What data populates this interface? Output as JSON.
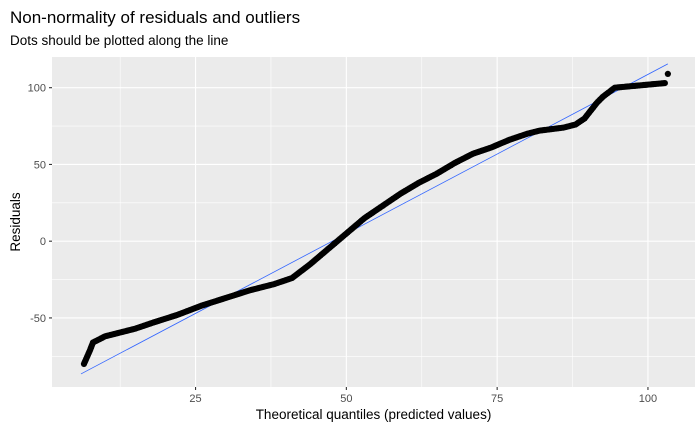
{
  "chart_data": {
    "type": "scatter",
    "title": "Non-normality of residuals and outliers",
    "subtitle": "Dots should be plotted along the line",
    "xlabel": "Theoretical quantiles (predicted values)",
    "ylabel": "Residuals",
    "xlim": [
      1.2,
      107.8
    ],
    "ylim": [
      -95,
      120
    ],
    "x_ticks": [
      25,
      50,
      75,
      100
    ],
    "x_tick_labels": [
      "25",
      "50",
      "75",
      "100"
    ],
    "y_ticks": [
      -50,
      0,
      50,
      100
    ],
    "y_tick_labels": [
      "-50",
      "0",
      "50",
      "100"
    ],
    "grid": true,
    "panel_background": "#ebebeb",
    "grid_color": "#ffffff",
    "point_color": "#000000",
    "line_color": "#3366ff",
    "reference_line": {
      "x": [
        6,
        103.3
      ],
      "y": [
        -86.5,
        115.5
      ]
    },
    "points": {
      "x": [
        6.5,
        7.5,
        8,
        9,
        10,
        12,
        15,
        18,
        22,
        26,
        30,
        34,
        38,
        41,
        44,
        47,
        50,
        53,
        56,
        59,
        62,
        65,
        68,
        71,
        74,
        77,
        80,
        82,
        84,
        86,
        88,
        89.5,
        90.5,
        91.5,
        92.5,
        93.5,
        94.5,
        102.8,
        103.3
      ],
      "y": [
        -80,
        -71,
        -66,
        -64,
        -62,
        -60,
        -57,
        -53,
        -48,
        -42,
        -37,
        -32,
        -28,
        -24,
        -15,
        -5,
        5,
        15,
        23,
        31,
        38,
        44,
        51,
        57,
        61,
        66,
        70,
        72,
        73,
        74,
        76,
        80,
        85,
        90,
        94,
        97,
        100,
        103,
        109
      ]
    }
  }
}
